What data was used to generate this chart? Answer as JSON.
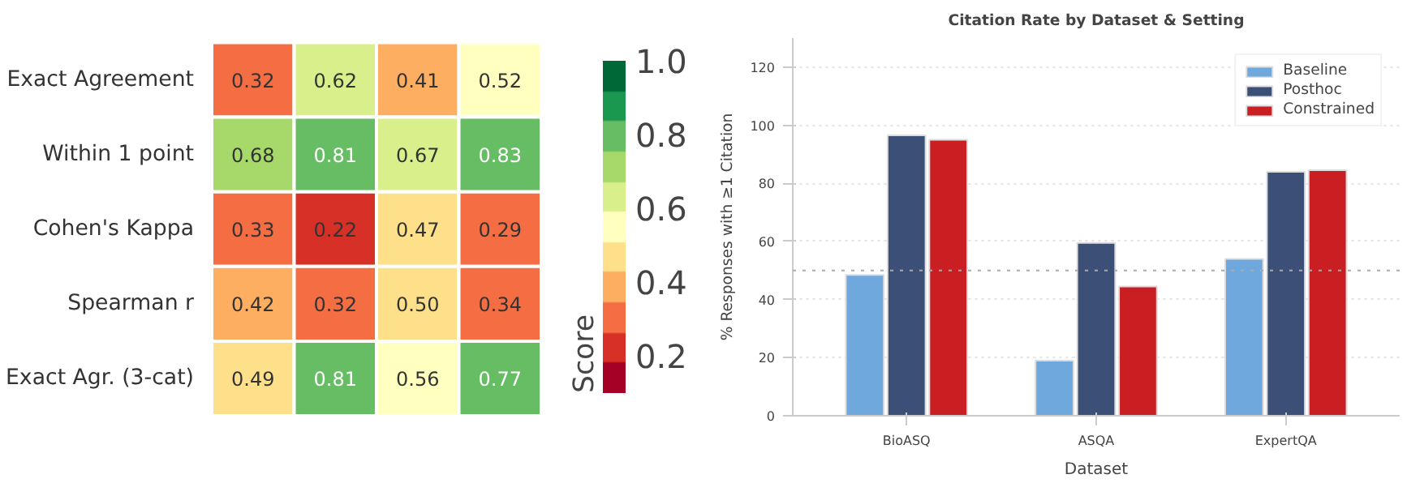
{
  "chart_data": [
    {
      "type": "heatmap",
      "categories": [
        null,
        null,
        null,
        null
      ],
      "y_categories": [
        "Exact Agreement",
        "Within 1 point",
        "Cohen's Kappa",
        "Spearman r",
        "Exact Agr. (3-cat)"
      ],
      "cells": [
        [
          0.32,
          0.62,
          0.41,
          0.52
        ],
        [
          0.68,
          0.81,
          0.67,
          0.83
        ],
        [
          0.33,
          0.22,
          0.47,
          0.29
        ],
        [
          0.42,
          0.32,
          0.5,
          0.34
        ],
        [
          0.49,
          0.81,
          0.56,
          0.77
        ]
      ],
      "cell_labels": [
        [
          "0.32",
          "0.62",
          "0.41",
          "0.52"
        ],
        [
          "0.68",
          "0.81",
          "0.67",
          "0.83"
        ],
        [
          "0.33",
          "0.22",
          "0.47",
          "0.29"
        ],
        [
          "0.42",
          "0.32",
          "0.50",
          "0.34"
        ],
        [
          "0.49",
          "0.81",
          "0.56",
          "0.77"
        ]
      ],
      "clim": [
        0.1,
        1.0
      ],
      "cticks": [
        0.2,
        0.4,
        0.6,
        0.8,
        {
          "value": 1.0,
          "label": "1.0"
        }
      ],
      "clabel": "Score",
      "data_labels": true
    },
    {
      "type": "bar",
      "title": "Citation Rate by Dataset & Setting",
      "xlabel": "Dataset",
      "ylabel": "% Responses with ≥1 Citation",
      "categories": [
        "BioASQ",
        "ASQA",
        "ExpertQA"
      ],
      "series": [
        {
          "name": "Baseline",
          "color": "#6fa8dc",
          "values": [
            48.5,
            19,
            54
          ]
        },
        {
          "name": "Posthoc",
          "color": "#3b4f77",
          "values": [
            96.5,
            59.5,
            84
          ]
        },
        {
          "name": "Constrained",
          "color": "#c91f22",
          "values": [
            95,
            44.5,
            84.5
          ]
        }
      ],
      "ylim": [
        0,
        130
      ],
      "yticks": [
        0,
        20,
        40,
        60,
        80,
        100,
        120
      ],
      "grid": "y",
      "legend": "top right",
      "ref_lines": [
        {
          "axis": "y",
          "value": 50,
          "color": "#aaaaaa",
          "line_style": "dotted"
        }
      ]
    }
  ]
}
